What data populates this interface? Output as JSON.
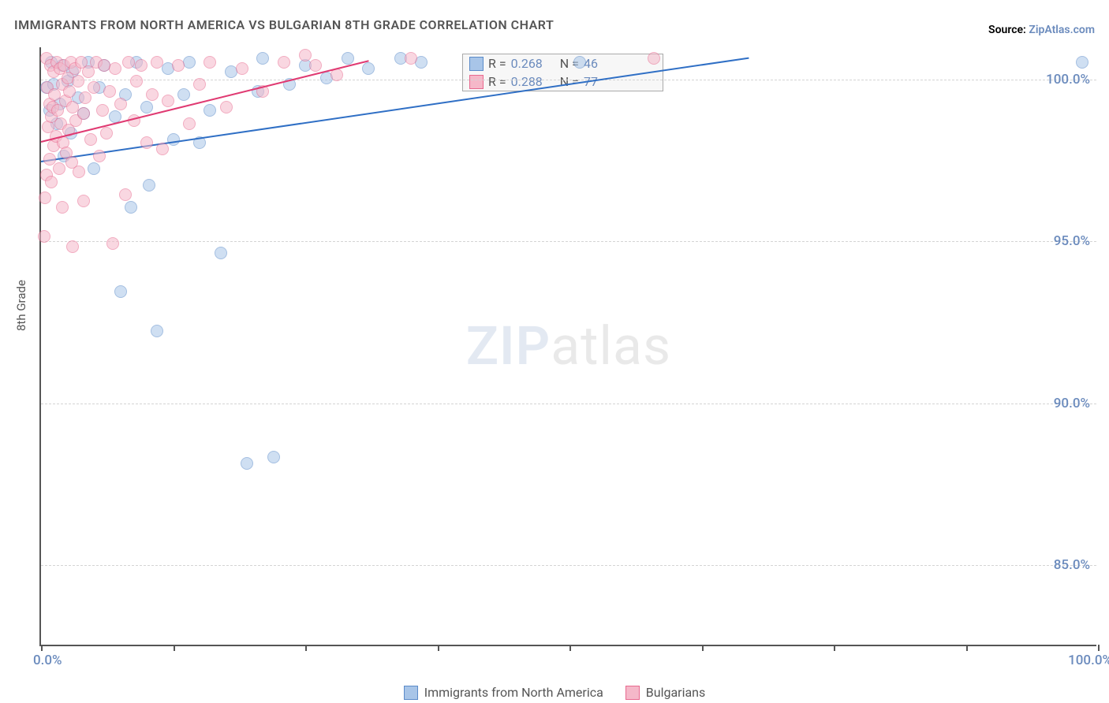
{
  "chart": {
    "type": "scatter",
    "title": "IMMIGRANTS FROM NORTH AMERICA VS BULGARIAN 8TH GRADE CORRELATION CHART",
    "source_label": "Source:",
    "source_link_text": "ZipAtlas.com",
    "yaxis_label": "8th Grade",
    "x_min": 0.0,
    "x_max": 100.0,
    "y_min": 82.5,
    "y_max": 101.0,
    "x_tick_label_low": "0.0%",
    "x_tick_label_high": "100.0%",
    "x_tick_positions": [
      0,
      12.5,
      25,
      37.5,
      50,
      62.5,
      75,
      87.5,
      100
    ],
    "y_ticks": [
      {
        "v": 85.0,
        "label": "85.0%"
      },
      {
        "v": 90.0,
        "label": "90.0%"
      },
      {
        "v": 95.0,
        "label": "95.0%"
      },
      {
        "v": 100.0,
        "label": "100.0%"
      }
    ],
    "background_color": "#ffffff",
    "grid_color": "#d4d4d4",
    "axis_color": "#555555",
    "marker_radius": 8,
    "marker_opacity": 0.55,
    "series": [
      {
        "name": "Immigrants from North America",
        "fill_color": "#a8c5e8",
        "stroke_color": "#5b8bc9",
        "line_color": "#2f6fc5",
        "R": "0.268",
        "N": "46",
        "points": [
          [
            0.5,
            99.7
          ],
          [
            0.8,
            99.0
          ],
          [
            1.0,
            100.5
          ],
          [
            1.2,
            99.8
          ],
          [
            1.5,
            98.6
          ],
          [
            1.8,
            99.2
          ],
          [
            2.0,
            100.4
          ],
          [
            2.2,
            97.6
          ],
          [
            2.5,
            99.9
          ],
          [
            2.8,
            98.3
          ],
          [
            3.0,
            100.2
          ],
          [
            3.5,
            99.4
          ],
          [
            4.0,
            98.9
          ],
          [
            4.5,
            100.5
          ],
          [
            5.0,
            97.2
          ],
          [
            5.5,
            99.7
          ],
          [
            6.0,
            100.4
          ],
          [
            7.0,
            98.8
          ],
          [
            7.5,
            93.4
          ],
          [
            8.0,
            99.5
          ],
          [
            8.5,
            96.0
          ],
          [
            9.0,
            100.5
          ],
          [
            10.0,
            99.1
          ],
          [
            10.2,
            96.7
          ],
          [
            11.0,
            92.2
          ],
          [
            12.0,
            100.3
          ],
          [
            12.5,
            98.1
          ],
          [
            13.5,
            99.5
          ],
          [
            14.0,
            100.5
          ],
          [
            15.0,
            98.0
          ],
          [
            16.0,
            99.0
          ],
          [
            17.0,
            94.6
          ],
          [
            18.0,
            100.2
          ],
          [
            19.5,
            88.1
          ],
          [
            20.5,
            99.6
          ],
          [
            21.0,
            100.6
          ],
          [
            22.0,
            88.3
          ],
          [
            23.5,
            99.8
          ],
          [
            25.0,
            100.4
          ],
          [
            27.0,
            100.0
          ],
          [
            29.0,
            100.6
          ],
          [
            31.0,
            100.3
          ],
          [
            34.0,
            100.6
          ],
          [
            36.0,
            100.5
          ],
          [
            51.0,
            100.5
          ],
          [
            98.5,
            100.5
          ]
        ],
        "trend": {
          "x1": 0,
          "y1": 97.5,
          "x2": 67,
          "y2": 100.7
        }
      },
      {
        "name": "Bulgarians",
        "fill_color": "#f5b8c9",
        "stroke_color": "#e86a8f",
        "line_color": "#e03a72",
        "R": "0.288",
        "N": "77",
        "points": [
          [
            0.3,
            95.1
          ],
          [
            0.4,
            96.3
          ],
          [
            0.5,
            97.0
          ],
          [
            0.5,
            100.6
          ],
          [
            0.6,
            99.7
          ],
          [
            0.7,
            98.5
          ],
          [
            0.8,
            99.2
          ],
          [
            0.8,
            97.5
          ],
          [
            0.9,
            100.4
          ],
          [
            1.0,
            98.8
          ],
          [
            1.0,
            96.8
          ],
          [
            1.1,
            99.1
          ],
          [
            1.2,
            100.2
          ],
          [
            1.2,
            97.9
          ],
          [
            1.3,
            99.5
          ],
          [
            1.4,
            98.2
          ],
          [
            1.5,
            100.5
          ],
          [
            1.6,
            99.0
          ],
          [
            1.7,
            97.2
          ],
          [
            1.8,
            100.3
          ],
          [
            1.9,
            98.6
          ],
          [
            2.0,
            99.8
          ],
          [
            2.0,
            96.0
          ],
          [
            2.1,
            98.0
          ],
          [
            2.2,
            100.4
          ],
          [
            2.3,
            99.3
          ],
          [
            2.4,
            97.7
          ],
          [
            2.5,
            100.0
          ],
          [
            2.6,
            98.4
          ],
          [
            2.7,
            99.6
          ],
          [
            2.8,
            100.5
          ],
          [
            2.9,
            97.4
          ],
          [
            3.0,
            99.1
          ],
          [
            3.0,
            94.8
          ],
          [
            3.2,
            100.3
          ],
          [
            3.3,
            98.7
          ],
          [
            3.5,
            99.9
          ],
          [
            3.6,
            97.1
          ],
          [
            3.8,
            100.5
          ],
          [
            4.0,
            98.9
          ],
          [
            4.0,
            96.2
          ],
          [
            4.2,
            99.4
          ],
          [
            4.5,
            100.2
          ],
          [
            4.7,
            98.1
          ],
          [
            5.0,
            99.7
          ],
          [
            5.2,
            100.5
          ],
          [
            5.5,
            97.6
          ],
          [
            5.8,
            99.0
          ],
          [
            6.0,
            100.4
          ],
          [
            6.2,
            98.3
          ],
          [
            6.5,
            99.6
          ],
          [
            6.8,
            94.9
          ],
          [
            7.0,
            100.3
          ],
          [
            7.5,
            99.2
          ],
          [
            8.0,
            96.4
          ],
          [
            8.3,
            100.5
          ],
          [
            8.8,
            98.7
          ],
          [
            9.0,
            99.9
          ],
          [
            9.5,
            100.4
          ],
          [
            10.0,
            98.0
          ],
          [
            10.5,
            99.5
          ],
          [
            11.0,
            100.5
          ],
          [
            11.5,
            97.8
          ],
          [
            12.0,
            99.3
          ],
          [
            13.0,
            100.4
          ],
          [
            14.0,
            98.6
          ],
          [
            15.0,
            99.8
          ],
          [
            16.0,
            100.5
          ],
          [
            17.5,
            99.1
          ],
          [
            19.0,
            100.3
          ],
          [
            21.0,
            99.6
          ],
          [
            23.0,
            100.5
          ],
          [
            25.0,
            100.7
          ],
          [
            26.0,
            100.4
          ],
          [
            28.0,
            100.1
          ],
          [
            35.0,
            100.6
          ],
          [
            58.0,
            100.6
          ]
        ],
        "trend": {
          "x1": 0,
          "y1": 98.1,
          "x2": 31,
          "y2": 100.6
        }
      }
    ],
    "watermark": {
      "part1": "ZIP",
      "part2": "atlas"
    }
  },
  "legend_labels": {
    "R": "R =",
    "N": "N ="
  }
}
